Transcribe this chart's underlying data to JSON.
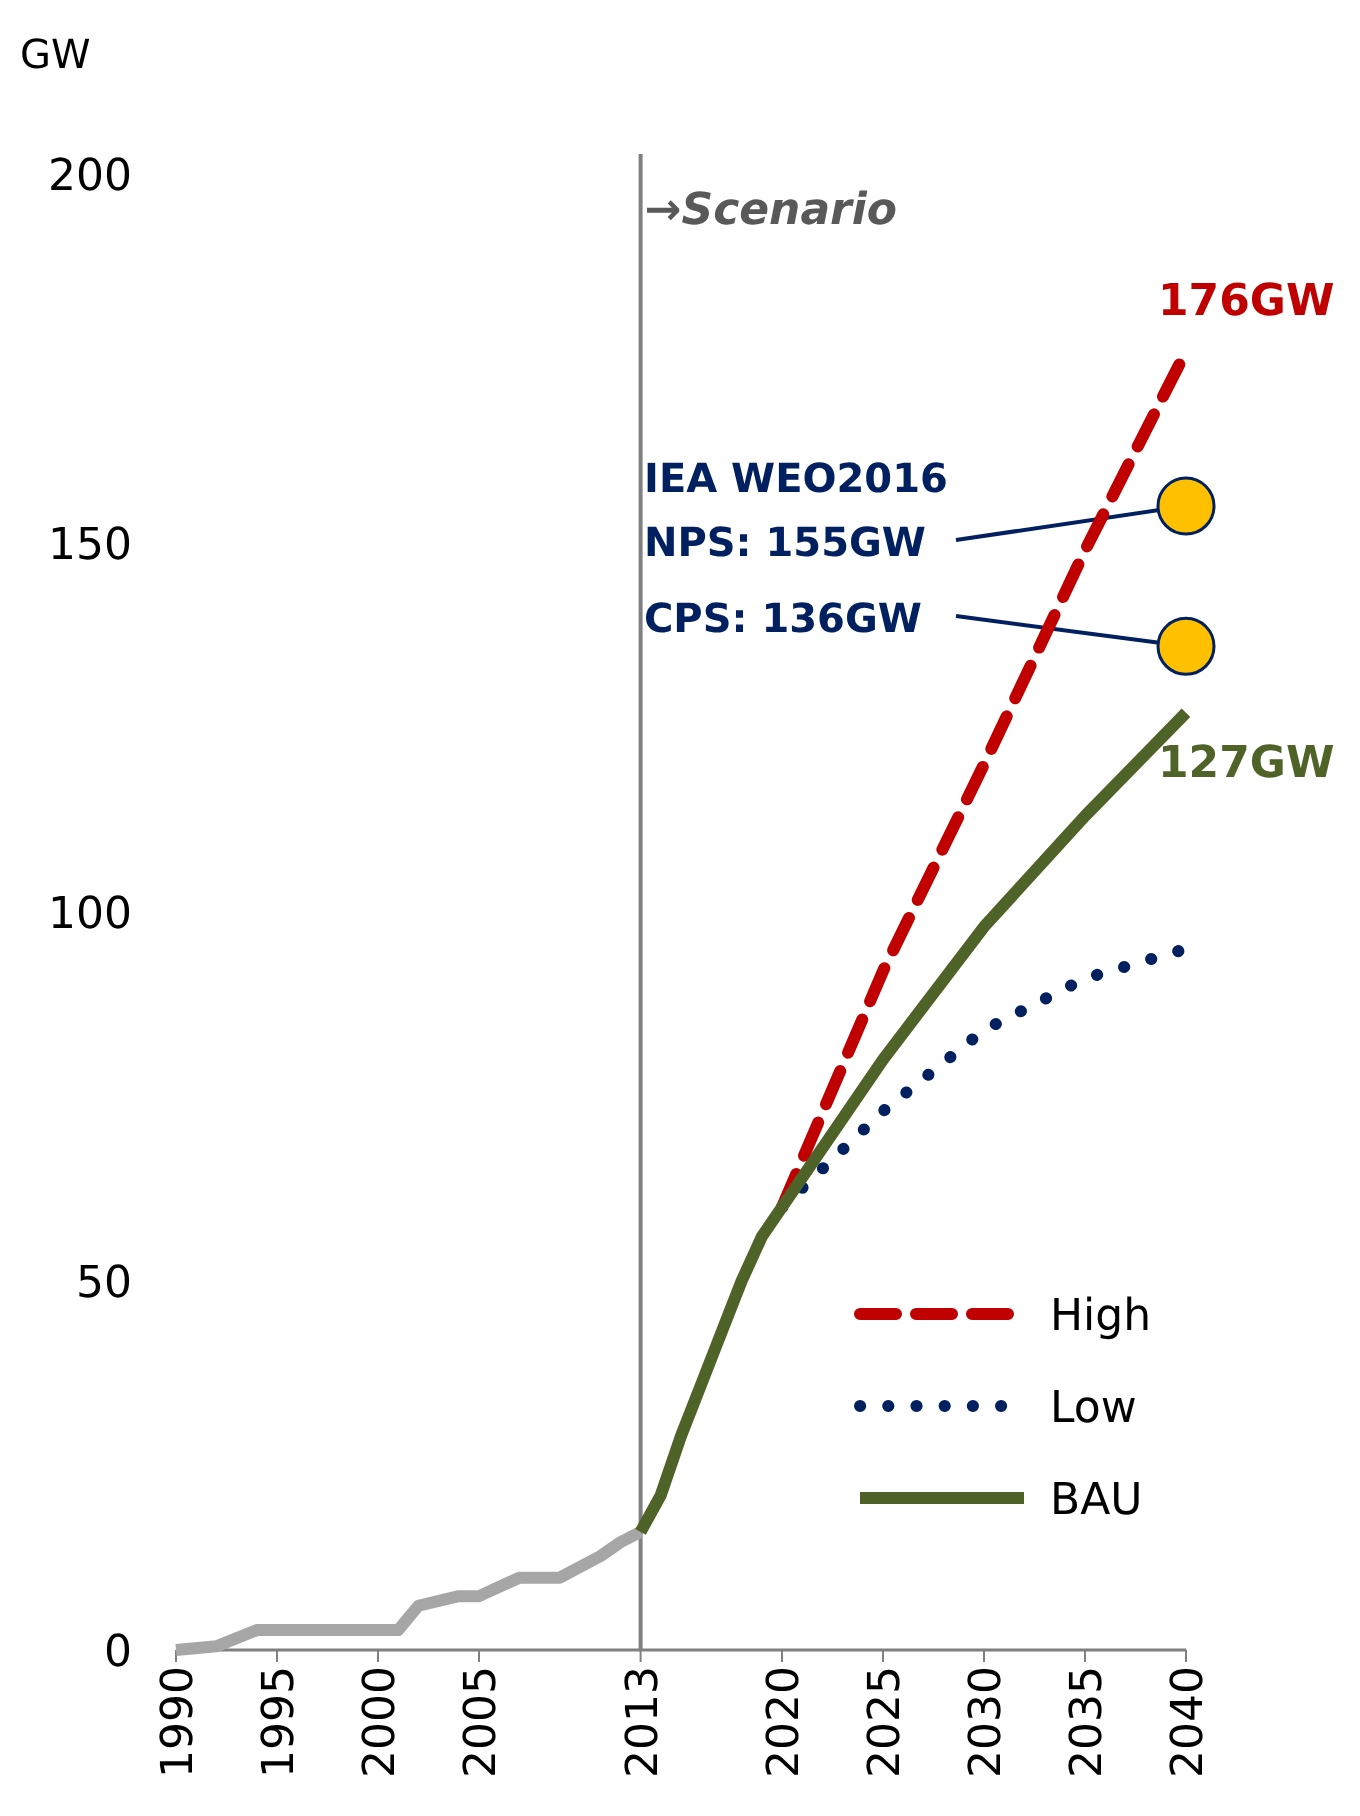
{
  "chart_data": {
    "type": "line",
    "ylabel": "GW",
    "xlim": [
      1990,
      2040
    ],
    "xticks": [
      1990,
      1995,
      2000,
      2005,
      2013,
      2020,
      2025,
      2030,
      2035,
      2040
    ],
    "ylim": [
      0,
      200
    ],
    "yticks": [
      0,
      50,
      100,
      150,
      200
    ],
    "grid": false,
    "legend": "bottom right",
    "marker": "none",
    "series": [
      {
        "color": "#a6a6a6",
        "line_style": "solid",
        "x": [
          1990,
          1992,
          1994,
          2001,
          2002,
          2004,
          2005,
          2007,
          2009,
          2011,
          2012,
          2013
        ],
        "values": [
          0,
          0.5,
          2.7,
          2.7,
          6,
          7.3,
          7.3,
          9.8,
          9.8,
          12.7,
          14.6,
          16
        ]
      },
      {
        "name": "High",
        "color": "#c00000",
        "line_style": "dashed",
        "x": [
          2020,
          2025,
          2030,
          2035,
          2040
        ],
        "values": [
          60,
          92,
          120,
          149,
          176
        ],
        "value_labels": [
          null,
          null,
          null,
          null,
          "176GW"
        ]
      },
      {
        "name": "Low",
        "color": "#002060",
        "line_style": "dotted",
        "x": [
          2020,
          2025,
          2030,
          2035,
          2040
        ],
        "values": [
          60,
          73,
          84,
          91,
          95
        ]
      },
      {
        "name": "BAU",
        "color": "#4f6228",
        "line_style": "solid",
        "x": [
          2013,
          2014,
          2015,
          2016,
          2017,
          2018,
          2019,
          2020,
          2025,
          2030,
          2035,
          2040
        ],
        "values": [
          16,
          21,
          29,
          36,
          43,
          50,
          56,
          60,
          80,
          98,
          113,
          127
        ],
        "value_labels": [
          null,
          null,
          null,
          null,
          null,
          null,
          null,
          null,
          null,
          null,
          null,
          "127GW"
        ]
      },
      {
        "type": "scatter",
        "marker": "circle",
        "color": "#ffc000",
        "x": [
          2040,
          2040
        ],
        "values": [
          155,
          136
        ]
      }
    ],
    "ref_lines": [
      {
        "axis": "x",
        "value": 2013,
        "label": "→Scenario",
        "color": "#808080"
      }
    ],
    "annotations": [
      "IEA WEO2016",
      {
        "text": "NPS: 155GW",
        "x": 2040,
        "y": 155
      },
      {
        "text": "CPS: 136GW",
        "x": 2040,
        "y": 136
      }
    ]
  }
}
